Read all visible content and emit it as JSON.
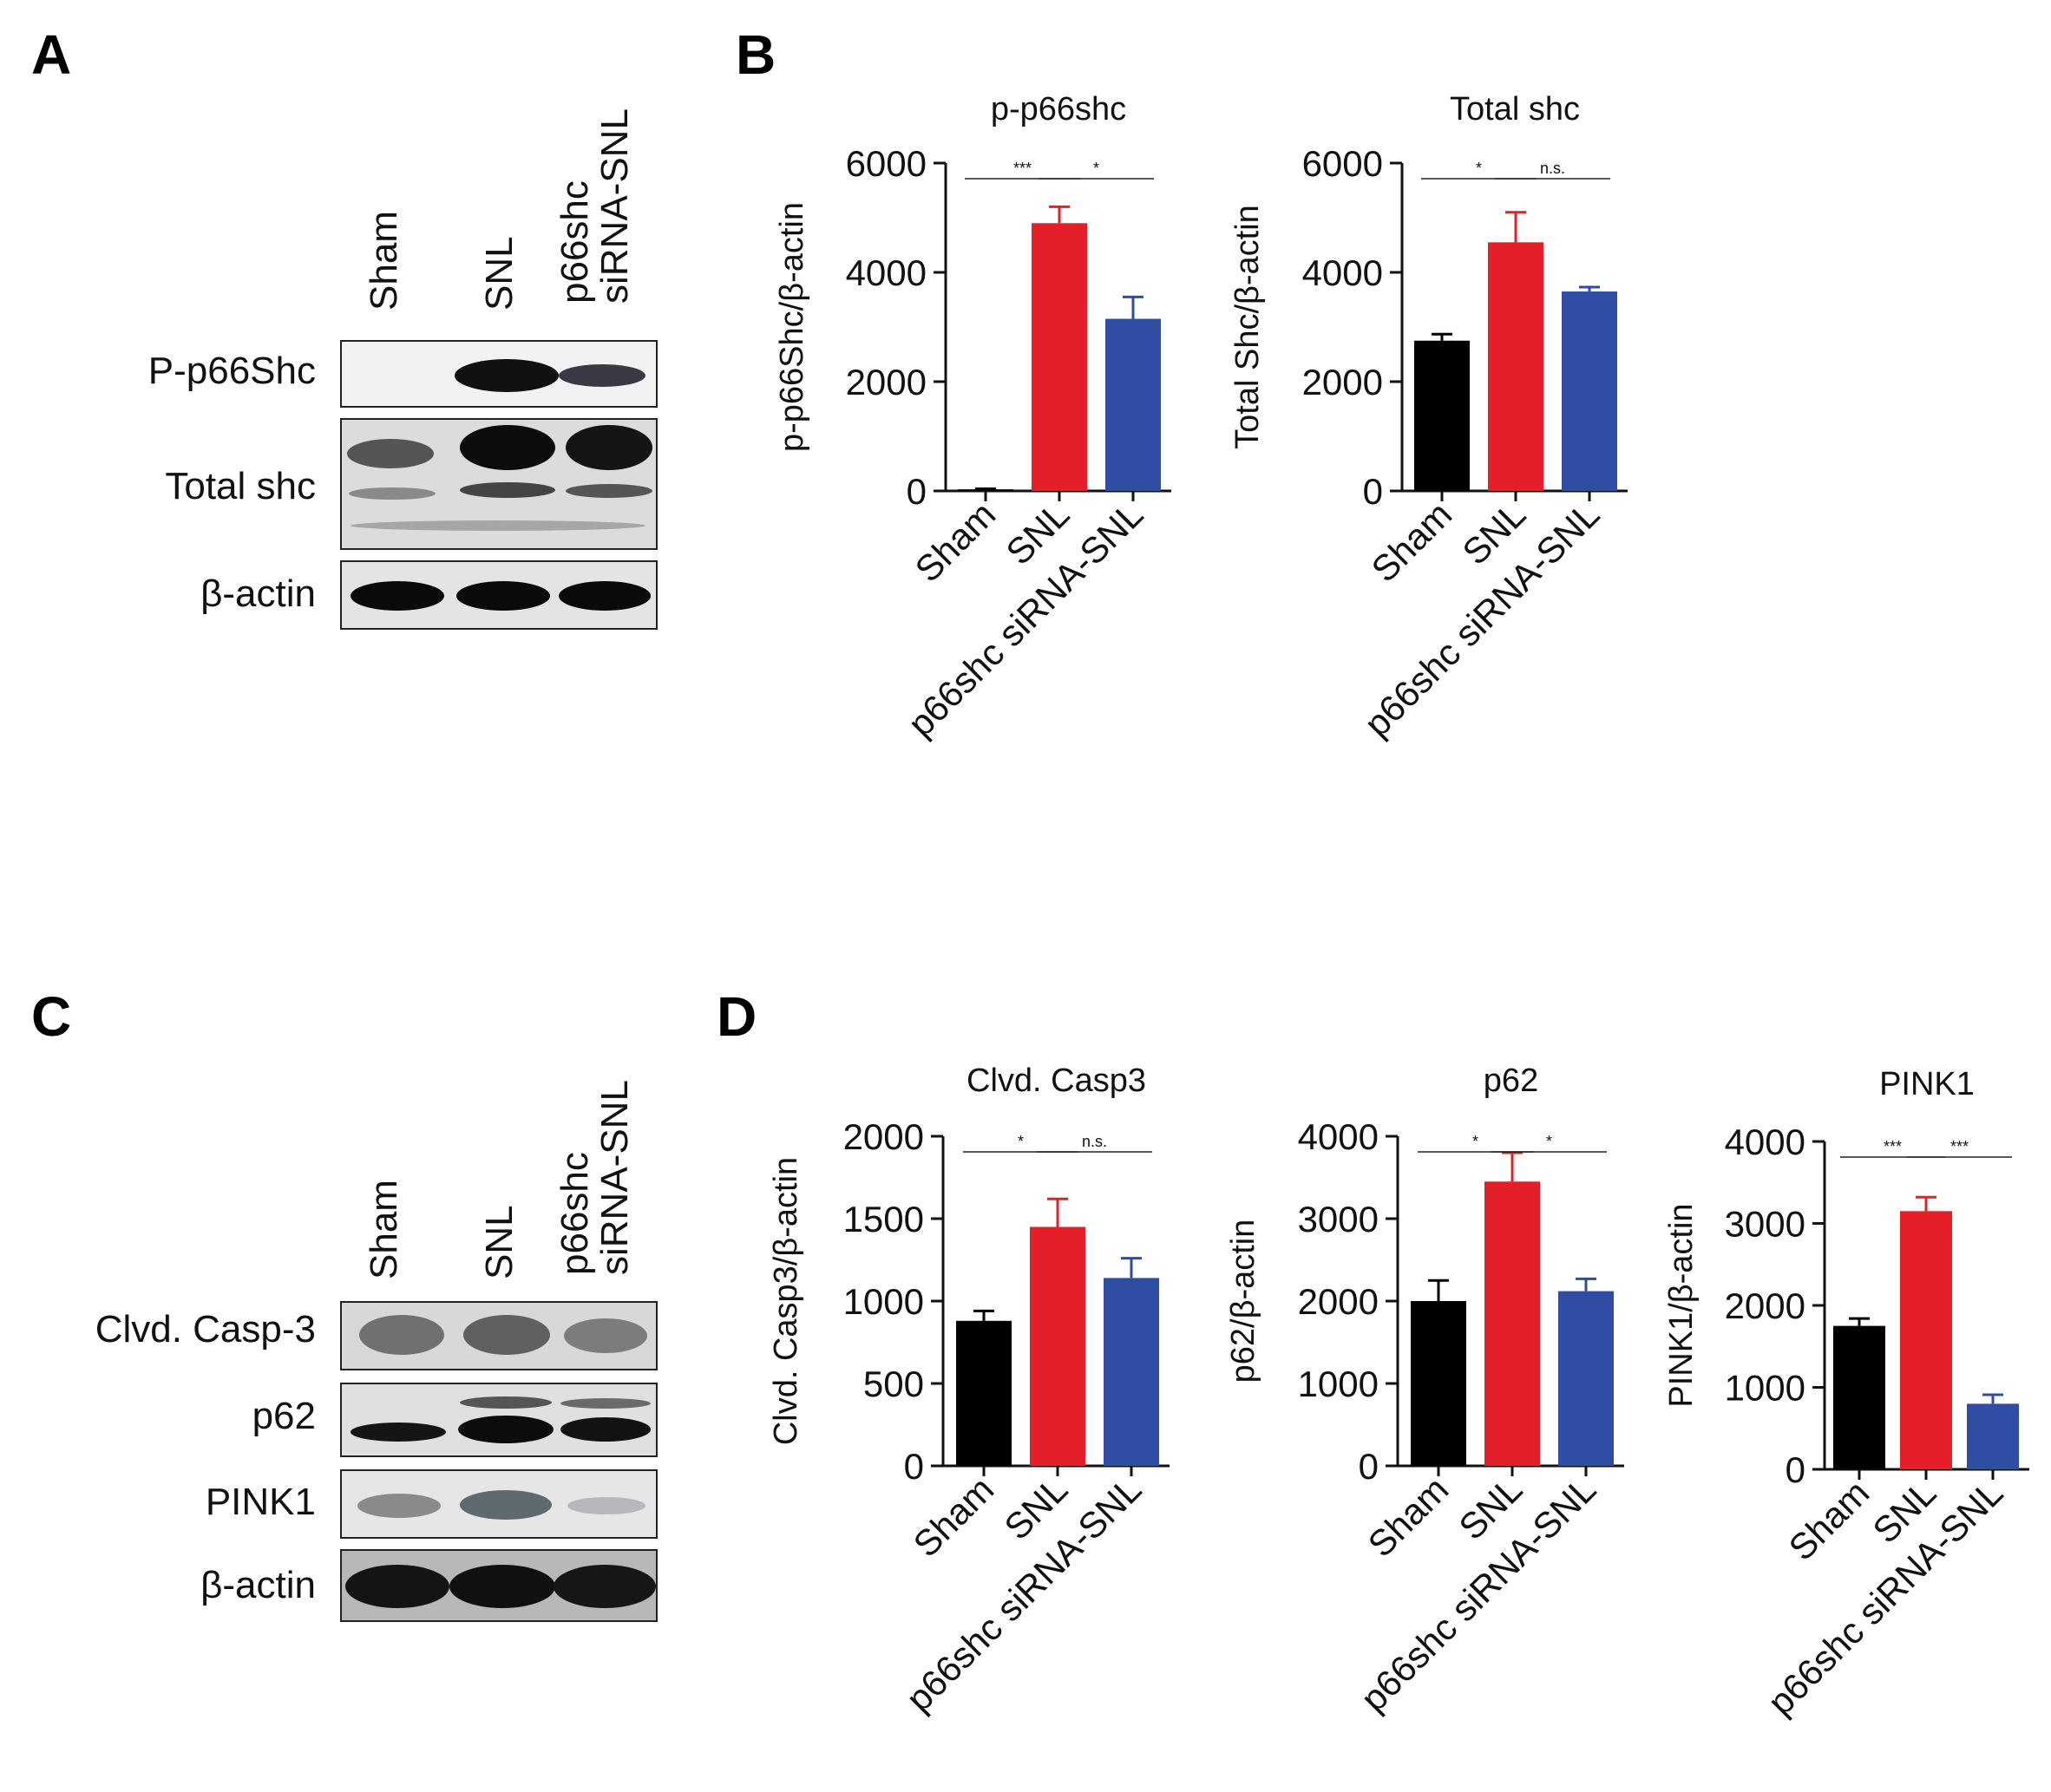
{
  "panels": {
    "A": {
      "letter": "A",
      "lanes": [
        "Sham",
        "SNL",
        "p66shc siRNA-SNL"
      ],
      "lane3_line1": "p66shc",
      "lane3_line2": "siRNA-SNL",
      "rows": [
        "P-p66Shc",
        "Total shc",
        "β-actin"
      ]
    },
    "B": {
      "letter": "B"
    },
    "C": {
      "letter": "C",
      "lanes": [
        "Sham",
        "SNL",
        "p66shc siRNA-SNL"
      ],
      "lane3_line1": "p66shc",
      "lane3_line2": "siRNA-SNL",
      "rows": [
        "Clvd. Casp-3",
        "p62",
        "PINK1",
        "β-actin"
      ]
    },
    "D": {
      "letter": "D"
    }
  },
  "colors": {
    "Sham": "#000000",
    "SNL": "#e51f2a",
    "p66shc siRNA-SNL": "#2f4da3"
  },
  "chart_data": [
    {
      "type": "bar",
      "panel": "B",
      "title": "p-p66shc",
      "ylabel": "p-p66Shc/β-actin",
      "categories": [
        "Sham",
        "SNL",
        "p66shc siRNA-SNL"
      ],
      "values": [
        30,
        4900,
        3150
      ],
      "errors": [
        10,
        300,
        400
      ],
      "ylim": [
        0,
        6000
      ],
      "yticks": [
        0,
        2000,
        4000,
        6000
      ],
      "significance": [
        {
          "from": 0,
          "to": 1,
          "label": "***"
        },
        {
          "from": 1,
          "to": 2,
          "label": "*"
        }
      ]
    },
    {
      "type": "bar",
      "panel": "B",
      "title": "Total shc",
      "ylabel": "Total Shc/β-actin",
      "categories": [
        "Sham",
        "SNL",
        "p66shc siRNA-SNL"
      ],
      "values": [
        2750,
        4550,
        3650
      ],
      "errors": [
        120,
        550,
        80
      ],
      "ylim": [
        0,
        6000
      ],
      "yticks": [
        0,
        2000,
        4000,
        6000
      ],
      "significance": [
        {
          "from": 0,
          "to": 1,
          "label": "*"
        },
        {
          "from": 1,
          "to": 2,
          "label": "n.s."
        }
      ]
    },
    {
      "type": "bar",
      "panel": "D",
      "title": "Clvd. Casp3",
      "ylabel": "Clvd. Casp3/β-actin",
      "categories": [
        "Sham",
        "SNL",
        "p66shc siRNA-SNL"
      ],
      "values": [
        880,
        1450,
        1140
      ],
      "errors": [
        60,
        170,
        120
      ],
      "ylim": [
        0,
        2000
      ],
      "yticks": [
        0,
        500,
        1000,
        1500,
        2000
      ],
      "significance": [
        {
          "from": 0,
          "to": 1,
          "label": "*"
        },
        {
          "from": 1,
          "to": 2,
          "label": "n.s."
        }
      ]
    },
    {
      "type": "bar",
      "panel": "D",
      "title": "p62",
      "ylabel": "p62/β-actin",
      "categories": [
        "Sham",
        "SNL",
        "p66shc siRNA-SNL"
      ],
      "values": [
        2000,
        3450,
        2120
      ],
      "errors": [
        250,
        350,
        150
      ],
      "ylim": [
        0,
        4000
      ],
      "yticks": [
        0,
        1000,
        2000,
        3000,
        4000
      ],
      "significance": [
        {
          "from": 0,
          "to": 1,
          "label": "*"
        },
        {
          "from": 1,
          "to": 2,
          "label": "*"
        }
      ]
    },
    {
      "type": "bar",
      "panel": "D",
      "title": "PINK1",
      "ylabel": "PINK1/β-actin",
      "categories": [
        "Sham",
        "SNL",
        "p66shc siRNA-SNL"
      ],
      "values": [
        1750,
        3150,
        800
      ],
      "errors": [
        90,
        170,
        110
      ],
      "ylim": [
        0,
        4000
      ],
      "yticks": [
        0,
        1000,
        2000,
        3000,
        4000
      ],
      "significance": [
        {
          "from": 0,
          "to": 1,
          "label": "***"
        },
        {
          "from": 1,
          "to": 2,
          "label": "***"
        }
      ]
    }
  ]
}
